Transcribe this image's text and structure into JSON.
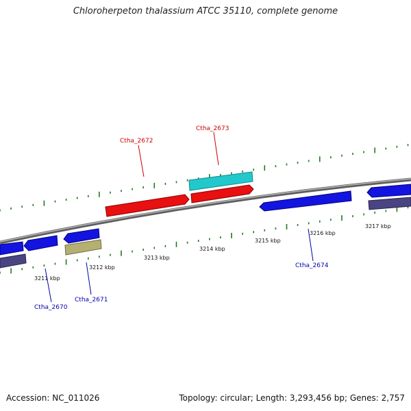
{
  "title": "Chloroherpeton thalassium ATCC 35110, complete genome",
  "footer": {
    "accession": "Accession: NC_011026",
    "summary": "Topology: circular; Length: 3,293,456 bp; Genes: 2,757"
  },
  "colors": {
    "backbone": "#8a8a8a",
    "tick": "#1e7a1e",
    "forward_cds": "#e81010",
    "forward_rna": "#22c8cc",
    "reverse_cds": "#1414e0",
    "reverse_other": "#b5b072",
    "reverse_pseudo": "#4a4482",
    "label_forward": "#cc0000",
    "label_reverse": "#0000aa"
  },
  "kbp_ticks": [
    {
      "label": "3211 kbp"
    },
    {
      "label": "3212 kbp"
    },
    {
      "label": "3213 kbp"
    },
    {
      "label": "3214 kbp"
    },
    {
      "label": "3215 kbp"
    },
    {
      "label": "3216 kbp"
    },
    {
      "label": "3217 kbp"
    }
  ],
  "gene_labels": [
    {
      "name": "Ctha_2672",
      "strand": "forward"
    },
    {
      "name": "Ctha_2673",
      "strand": "forward"
    },
    {
      "name": "Ctha_2670",
      "strand": "reverse"
    },
    {
      "name": "Ctha_2671",
      "strand": "reverse"
    },
    {
      "name": "Ctha_2674",
      "strand": "reverse"
    }
  ]
}
